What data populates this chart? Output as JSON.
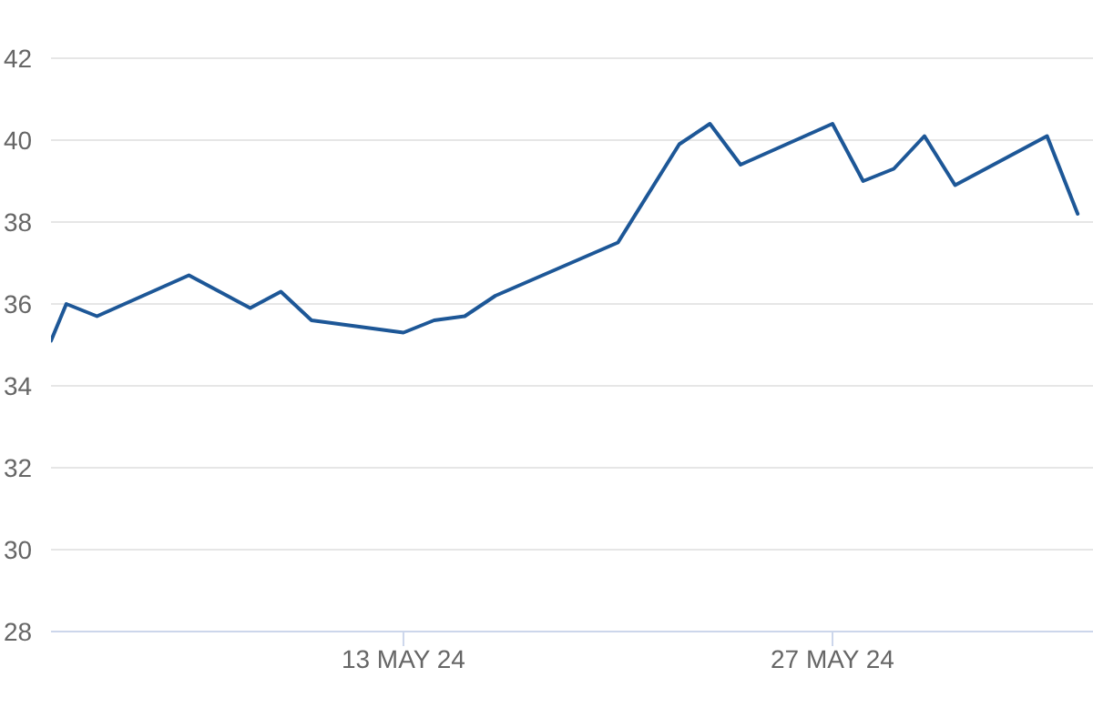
{
  "chart_data": {
    "type": "line",
    "x": [
      "--05-01T12:00",
      "--05-02",
      "--05-03",
      "--05-06",
      "--05-07",
      "--05-08",
      "--05-09",
      "--05-10",
      "--05-13",
      "--05-14",
      "--05-15",
      "--05-16",
      "--05-20",
      "--05-22",
      "--05-23",
      "--05-24",
      "--05-27",
      "--05-28",
      "--05-29",
      "--05-30",
      "--05-31",
      "--06-03",
      "--06-04"
    ],
    "series": [
      {
        "color": "#1d5797",
        "values": [
          35.1,
          36.0,
          35.7,
          36.7,
          36.3,
          35.9,
          36.3,
          35.6,
          35.3,
          35.6,
          35.7,
          36.2,
          37.5,
          39.9,
          40.4,
          39.4,
          40.4,
          39.0,
          39.3,
          40.1,
          38.9,
          40.1,
          38.2
        ]
      }
    ],
    "xlim": [
      "--05-01T12:00",
      "--06-04T12:00"
    ],
    "xticks": [
      {
        "value": "--05-13",
        "label": "13 MAY 24"
      },
      {
        "value": "--05-27",
        "label": "27 MAY 24"
      }
    ],
    "ylim": [
      28,
      42
    ],
    "yticks": [
      28,
      30,
      32,
      34,
      36,
      38,
      40,
      42
    ],
    "grid": "y",
    "marker": "none",
    "line_style": "solid"
  }
}
